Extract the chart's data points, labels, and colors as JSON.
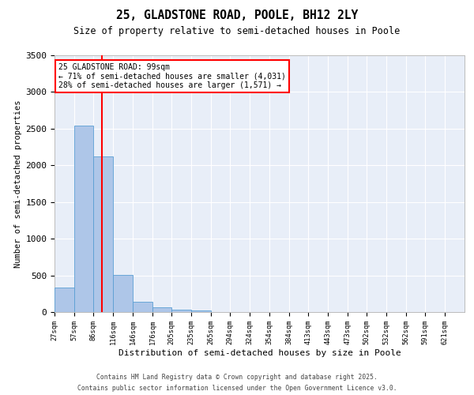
{
  "title1": "25, GLADSTONE ROAD, POOLE, BH12 2LY",
  "title2": "Size of property relative to semi-detached houses in Poole",
  "xlabel": "Distribution of semi-detached houses by size in Poole",
  "ylabel": "Number of semi-detached properties",
  "bins": [
    "27sqm",
    "57sqm",
    "86sqm",
    "116sqm",
    "146sqm",
    "176sqm",
    "205sqm",
    "235sqm",
    "265sqm",
    "294sqm",
    "324sqm",
    "354sqm",
    "384sqm",
    "413sqm",
    "443sqm",
    "473sqm",
    "502sqm",
    "532sqm",
    "562sqm",
    "591sqm",
    "621sqm"
  ],
  "values": [
    330,
    2540,
    2120,
    510,
    140,
    65,
    35,
    20,
    0,
    0,
    0,
    0,
    0,
    0,
    0,
    0,
    0,
    0,
    0,
    0
  ],
  "bar_color": "#aec6e8",
  "bar_edge_color": "#5a9fd4",
  "vline_x": 99,
  "vline_color": "red",
  "annotation_title": "25 GLADSTONE ROAD: 99sqm",
  "annotation_line1": "← 71% of semi-detached houses are smaller (4,031)",
  "annotation_line2": "28% of semi-detached houses are larger (1,571) →",
  "ylim": [
    0,
    3500
  ],
  "yticks": [
    0,
    500,
    1000,
    1500,
    2000,
    2500,
    3000,
    3500
  ],
  "plot_bg_color": "#e8eef8",
  "bin_starts": [
    27,
    57,
    86,
    116,
    146,
    176,
    205,
    235,
    265,
    294,
    324,
    354,
    384,
    413,
    443,
    473,
    502,
    532,
    562,
    591
  ],
  "xlim_min": 27,
  "xlim_max": 651,
  "footer1": "Contains HM Land Registry data © Crown copyright and database right 2025.",
  "footer2": "Contains public sector information licensed under the Open Government Licence v3.0."
}
